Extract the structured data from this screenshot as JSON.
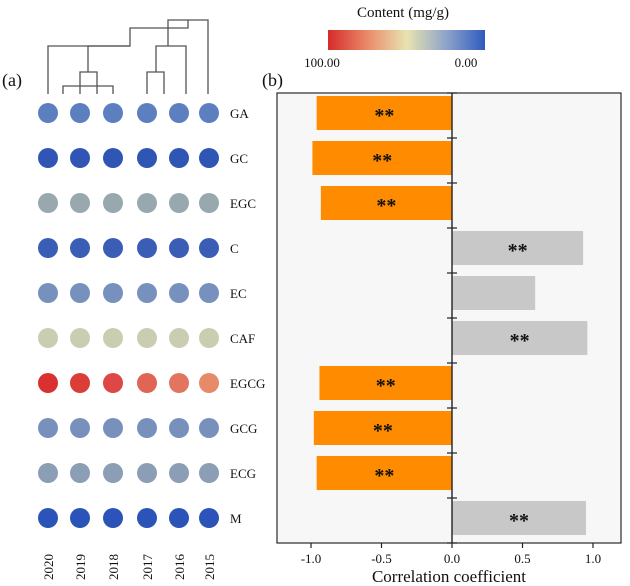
{
  "figure": {
    "panel_a_label": "(a)",
    "panel_b_label": "(b)"
  },
  "legend": {
    "title": "Content (mg/g)",
    "max_label": "100.00",
    "min_label": "0.00",
    "gradient_colors": [
      "#d62b2b",
      "#e98a6a",
      "#e8e3b0",
      "#8fa5c9",
      "#2f5bbf"
    ]
  },
  "chart_data": [
    {
      "type": "heatmap",
      "panel": "(a)",
      "marker": "circle",
      "years": [
        "2020",
        "2019",
        "2018",
        "2017",
        "2016",
        "2015"
      ],
      "compounds": [
        "GA",
        "GC",
        "EGC",
        "C",
        "EC",
        "CAF",
        "EGCG",
        "GCG",
        "ECG",
        "M"
      ],
      "colorbar_range": [
        0,
        100
      ],
      "color_by_compound": {
        "GA": "#5c7fc0",
        "GC": "#2f55b5",
        "EGC": "#97a9ae",
        "C": "#3a5eb6",
        "EC": "#7791be",
        "CAF": "#cbcdb1",
        "GCG": "#7890bc",
        "ECG": "#8b9eb5",
        "M": "#2c54b8"
      },
      "egcg_colors": [
        "#d8312f",
        "#db3d37",
        "#dd4744",
        "#e06555",
        "#e37560",
        "#e68a6a"
      ],
      "dendrogram": "hierarchical clustering of the six years, drawn above the columns"
    },
    {
      "type": "bar",
      "panel": "(b)",
      "orientation": "horizontal",
      "categories": [
        "GA",
        "GC",
        "EGC",
        "C",
        "EC",
        "CAF",
        "EGCG",
        "GCG",
        "ECG",
        "M"
      ],
      "values": [
        -0.96,
        -0.99,
        -0.93,
        0.93,
        0.59,
        0.96,
        -0.94,
        -0.98,
        -0.96,
        0.95
      ],
      "significance": [
        "**",
        "**",
        "**",
        "**",
        "",
        "**",
        "**",
        "**",
        "**",
        "**"
      ],
      "negative_color": "#ff8c00",
      "positive_color": "#c8c8c8",
      "xlim": [
        -1.25,
        1.25
      ],
      "xticks": [
        "-1.0",
        "-0.5",
        "0.0",
        "0.5",
        "1.0"
      ],
      "xlabel": "Correlation coefficient"
    }
  ]
}
